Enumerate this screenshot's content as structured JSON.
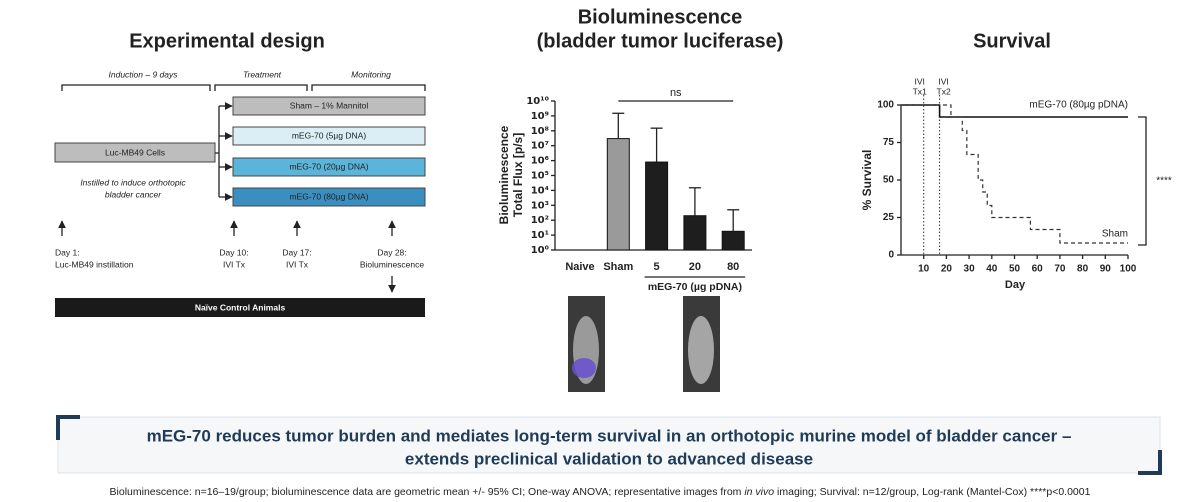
{
  "design": {
    "title": "Experimental design",
    "phases": [
      "Induction – 9 days",
      "Treatment",
      "Monitoring"
    ],
    "cells": "Luc-MB49 Cells",
    "cells_note": [
      "Instilled to induce orthotopic",
      "bladder cancer"
    ],
    "arms": [
      "Sham – 1% Mannitol",
      "mEG-70 (5µg DNA)",
      "mEG-70 (20µg DNA)",
      "mEG-70 (80µg DNA)"
    ],
    "days": [
      [
        "Day 1:",
        "Luc-MB49 instillation"
      ],
      [
        "Day 10:",
        "IVI Tx"
      ],
      [
        "Day 17:",
        "IVI Tx"
      ],
      [
        "Day 28:",
        "Bioluminescence"
      ]
    ],
    "control": "Naïve Control Animals"
  },
  "chart_data": [
    {
      "type": "bar",
      "title": "Bioluminescence",
      "subtitle": "(bladder tumor luciferase)",
      "ylabel": [
        "Bioluminescence",
        "Total Flux [p/s]"
      ],
      "categories": [
        "Naive",
        "Sham",
        "5",
        "20",
        "80"
      ],
      "values": [
        null,
        30000000,
        800000,
        200,
        18
      ],
      "error_high": [
        null,
        1500000000,
        150000000,
        15000,
        500
      ],
      "colors": [
        "#222222",
        "#9a9a9a",
        "#1e1e1e",
        "#1e1e1e",
        "#1e1e1e"
      ],
      "log": true,
      "ylim": [
        1,
        10000000000
      ],
      "yticks": [
        {
          "value": 1,
          "label": "10⁰"
        },
        {
          "value": 10,
          "label": "10¹"
        },
        {
          "value": 100,
          "label": "10²"
        },
        {
          "value": 1000,
          "label": "10³"
        },
        {
          "value": 10000,
          "label": "10⁴"
        },
        {
          "value": 100000,
          "label": "10⁵"
        },
        {
          "value": 1000000,
          "label": "10⁶"
        },
        {
          "value": 10000000,
          "label": "10⁷"
        },
        {
          "value": 100000000,
          "label": "10⁸"
        },
        {
          "value": 1000000000,
          "label": "10⁹"
        },
        {
          "value": 10000000000,
          "label": "10¹⁰"
        }
      ],
      "group_label": "mEG-70 (µg pDNA)",
      "significance": "ns"
    },
    {
      "type": "line",
      "title": "Survival",
      "xlabel": "Day",
      "ylabel": "% Survival",
      "xlim": [
        0,
        100
      ],
      "ylim": [
        0,
        100
      ],
      "xticks": [
        10,
        20,
        30,
        40,
        50,
        60,
        70,
        80,
        90,
        100
      ],
      "yticks": [
        0,
        25,
        50,
        75,
        100
      ],
      "series": [
        {
          "name": "mEG-70 (80µg pDNA)",
          "color": "#111111",
          "line_style": "solid",
          "x": [
            0,
            17,
            17,
            100
          ],
          "values": [
            100,
            100,
            92,
            92
          ]
        },
        {
          "name": "Sham",
          "color": "#333333",
          "line_style": "dashed",
          "x": [
            0,
            22,
            22,
            27,
            27,
            29,
            29,
            34,
            34,
            36,
            36,
            38,
            38,
            40,
            40,
            57,
            57,
            70,
            70,
            100
          ],
          "values": [
            100,
            100,
            92,
            92,
            83,
            83,
            67,
            67,
            50,
            50,
            42,
            42,
            33,
            33,
            25,
            25,
            17,
            17,
            8,
            8
          ]
        }
      ],
      "markers": [
        {
          "x": 10,
          "label": [
            "IVI",
            "Tx1"
          ]
        },
        {
          "x": 17,
          "label": [
            "IVI",
            "Tx2"
          ]
        }
      ],
      "significance": "****"
    }
  ],
  "banner": [
    "mEG-70 reduces tumor burden and mediates long-term survival in an orthotopic murine model of bladder cancer –",
    "extends preclinical validation to advanced disease"
  ],
  "footnote": [
    "Bioluminescence: n=16–19/group; bioluminescence data are geometric mean +/- 95% CI; One-way ANOVA; representative images from ",
    "in vivo",
    " imaging; Survival: n=12/group, Log-rank (Mantel-Cox)  ****p<0.0001"
  ]
}
